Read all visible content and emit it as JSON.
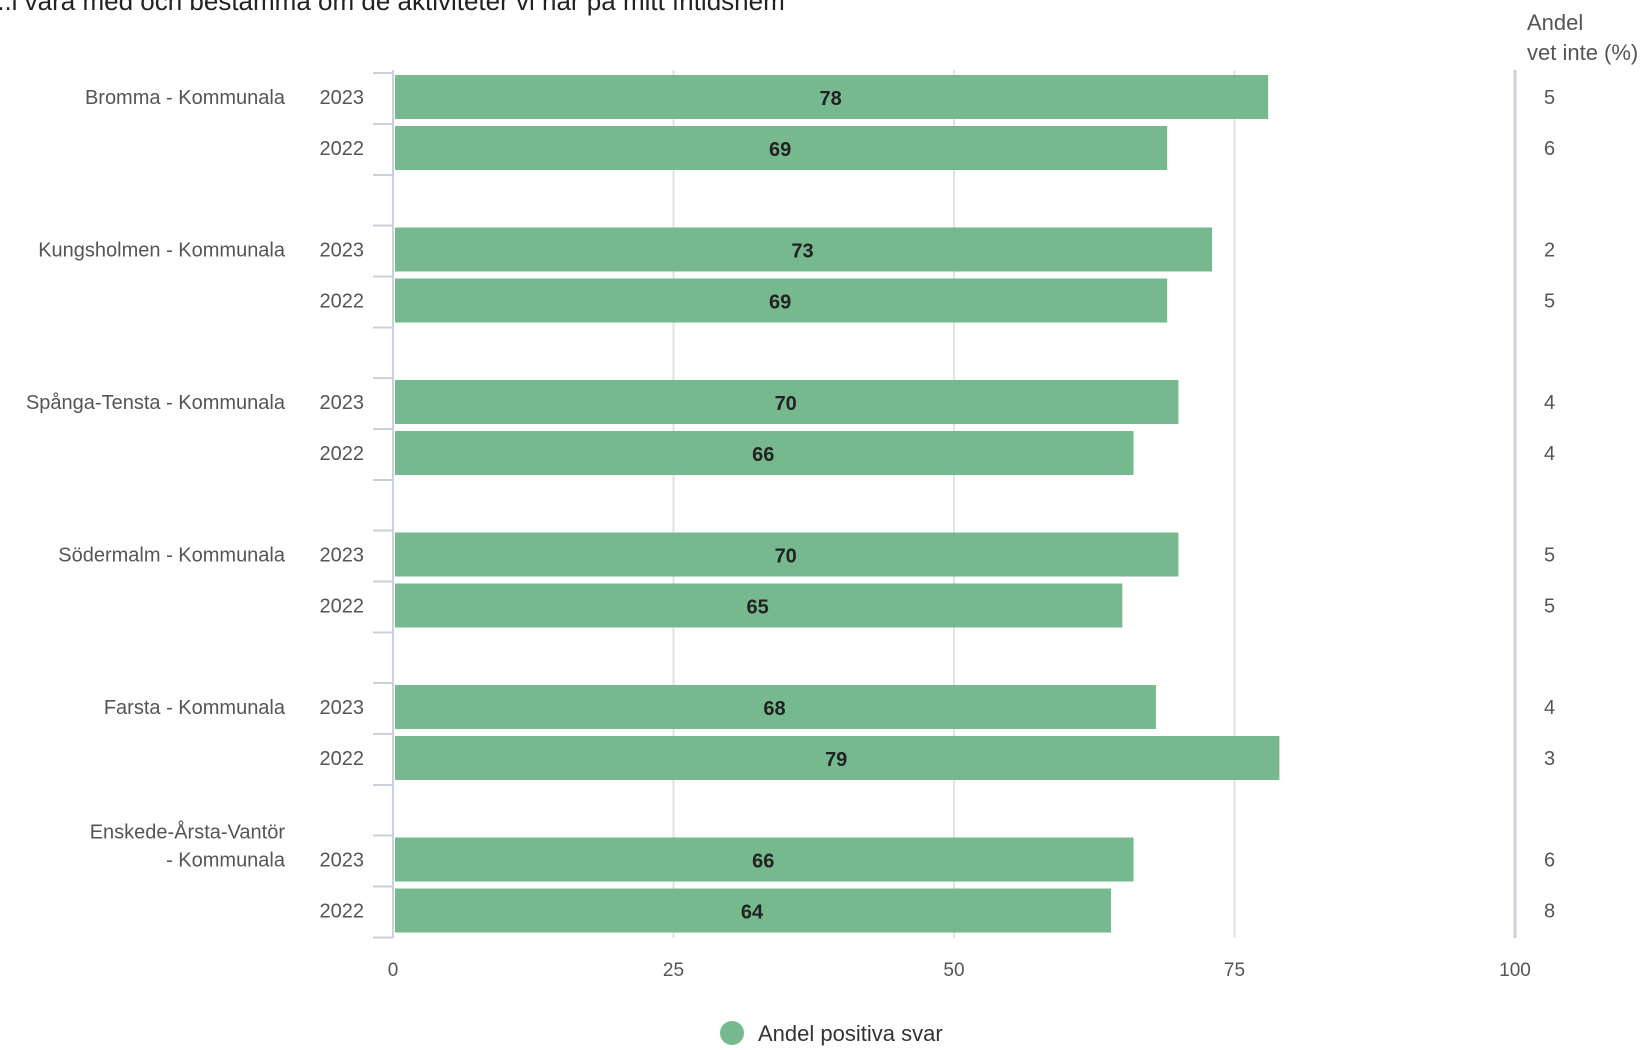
{
  "title": "...l vara med och bestämma om de aktiviteter vi har på mitt fritidshem",
  "right_column_header": [
    "Andel",
    "vet inte (%)"
  ],
  "chart_data": {
    "type": "bar",
    "orientation": "horizontal",
    "title": "...l vara med och bestämma om de aktiviteter vi har på mitt fritidshem",
    "xlim": [
      0,
      100
    ],
    "xticks": [
      0,
      25,
      50,
      75,
      100
    ],
    "grid": true,
    "legend": {
      "placement": "bottom-center",
      "entries": [
        "Andel positiva svar"
      ]
    },
    "series_color": "#76b98f",
    "groups": [
      {
        "label": [
          "Bromma - Kommunala"
        ],
        "bars": [
          {
            "year": "2023",
            "value": 78,
            "vet_inte": 5
          },
          {
            "year": "2022",
            "value": 69,
            "vet_inte": 6
          }
        ]
      },
      {
        "label": [
          "Kungsholmen - Kommunala"
        ],
        "bars": [
          {
            "year": "2023",
            "value": 73,
            "vet_inte": 2
          },
          {
            "year": "2022",
            "value": 69,
            "vet_inte": 5
          }
        ]
      },
      {
        "label": [
          "Spånga-Tensta - Kommunala"
        ],
        "bars": [
          {
            "year": "2023",
            "value": 70,
            "vet_inte": 4
          },
          {
            "year": "2022",
            "value": 66,
            "vet_inte": 4
          }
        ]
      },
      {
        "label": [
          "Södermalm - Kommunala"
        ],
        "bars": [
          {
            "year": "2023",
            "value": 70,
            "vet_inte": 5
          },
          {
            "year": "2022",
            "value": 65,
            "vet_inte": 5
          }
        ]
      },
      {
        "label": [
          "Farsta - Kommunala"
        ],
        "bars": [
          {
            "year": "2023",
            "value": 68,
            "vet_inte": 4
          },
          {
            "year": "2022",
            "value": 79,
            "vet_inte": 3
          }
        ]
      },
      {
        "label": [
          "Enskede-Årsta-Vantör",
          "- Kommunala"
        ],
        "bars": [
          {
            "year": "2023",
            "value": 66,
            "vet_inte": 6
          },
          {
            "year": "2022",
            "value": 64,
            "vet_inte": 8
          }
        ]
      }
    ]
  }
}
